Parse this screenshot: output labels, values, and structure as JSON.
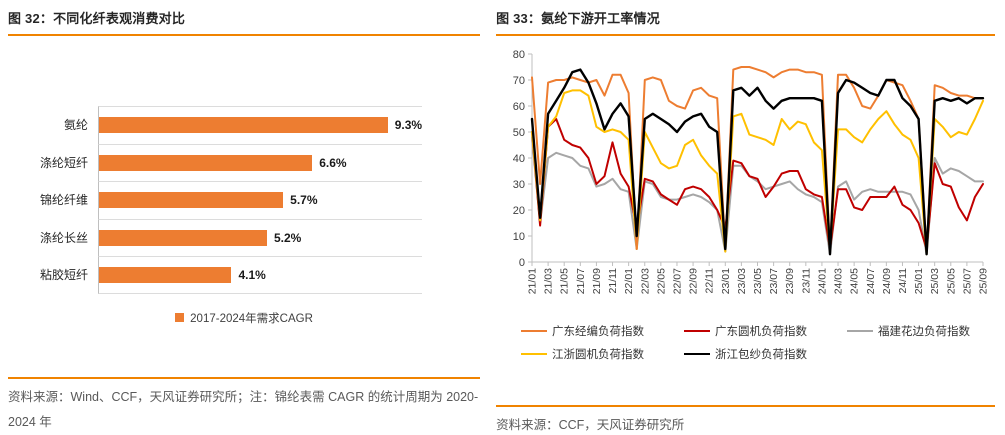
{
  "panels": {
    "left": {
      "title": "图 32：不同化纤表观消费对比",
      "legend_label": "2017-2024年需求CAGR",
      "source": "资料来源：Wind、CCF，天风证券研究所；注：锦纶表需 CAGR 的统计周期为 2020-2024 年"
    },
    "right": {
      "title": "图 33：氨纶下游开工率情况",
      "source": "资料来源：CCF，天风证券研究所"
    }
  },
  "colors": {
    "rule_orange": "#F08300",
    "bar_orange": "#ED7D31",
    "grid_gray": "#DCDCDC",
    "axis_gray": "#BFBFBF",
    "tick_text": "#404040"
  },
  "chart_data": [
    {
      "type": "bar",
      "orientation": "horizontal",
      "title": "不同化纤表观消费对比",
      "series_name": "2017-2024年需求CAGR",
      "categories": [
        "氨纶",
        "涤纶短纤",
        "锦纶纤维",
        "涤纶长丝",
        "粘胶短纤"
      ],
      "values": [
        9.3,
        6.6,
        5.7,
        5.2,
        4.1
      ],
      "value_labels": [
        "9.3%",
        "6.6%",
        "5.7%",
        "5.2%",
        "4.1%"
      ],
      "xlim": [
        0,
        10
      ],
      "bar_color": "#ED7D31",
      "grid": "category-separators"
    },
    {
      "type": "line",
      "title": "氨纶下游开工率情况",
      "ylim": [
        0,
        80
      ],
      "ytick_interval": 10,
      "xtick_every": 2,
      "legend_position": "bottom",
      "x": [
        "21/01",
        "21/02",
        "21/03",
        "21/04",
        "21/05",
        "21/06",
        "21/07",
        "21/08",
        "21/09",
        "21/10",
        "21/11",
        "21/12",
        "22/01",
        "22/02",
        "22/03",
        "22/04",
        "22/05",
        "22/06",
        "22/07",
        "22/08",
        "22/09",
        "22/10",
        "22/11",
        "22/12",
        "23/01",
        "23/02",
        "23/03",
        "23/04",
        "23/05",
        "23/06",
        "23/07",
        "23/08",
        "23/09",
        "23/10",
        "23/11",
        "23/12",
        "24/01",
        "24/02",
        "24/03",
        "24/04",
        "24/05",
        "24/06",
        "24/07",
        "24/08",
        "24/09",
        "24/10",
        "24/11",
        "24/12",
        "25/01",
        "25/02",
        "25/03",
        "25/04",
        "25/05",
        "25/06",
        "25/07",
        "25/08",
        "25/09"
      ],
      "series": [
        {
          "name": "广东经编负荷指数",
          "color": "#ED7D31",
          "width": 2,
          "values": [
            71,
            30,
            69,
            70,
            70,
            71,
            70,
            69,
            70,
            64,
            72,
            72,
            65,
            5,
            70,
            71,
            70,
            62,
            60,
            59,
            66,
            67,
            64,
            63,
            5,
            74,
            75,
            75,
            74,
            73,
            71,
            73,
            74,
            74,
            73,
            73,
            72,
            4,
            72,
            72,
            67,
            60,
            59,
            64,
            70,
            69,
            68,
            62,
            55,
            4,
            68,
            67,
            65,
            64,
            64,
            63,
            63
          ]
        },
        {
          "name": "广东圆机负荷指数",
          "color": "#C00000",
          "width": 2,
          "values": [
            50,
            14,
            52,
            55,
            47,
            45,
            44,
            40,
            30,
            33,
            46,
            34,
            29,
            13,
            32,
            31,
            26,
            24,
            22,
            28,
            29,
            28,
            25,
            20,
            13,
            39,
            38,
            33,
            32,
            25,
            29,
            34,
            35,
            35,
            28,
            26,
            25,
            5,
            28,
            28,
            21,
            20,
            25,
            25,
            25,
            29,
            22,
            20,
            15,
            5,
            38,
            30,
            29,
            21,
            16,
            25,
            30
          ]
        },
        {
          "name": "福建花边负荷指数",
          "color": "#A6A6A6",
          "width": 2,
          "values": [
            48,
            15,
            40,
            42,
            41,
            40,
            37,
            36,
            29,
            30,
            32,
            28,
            27,
            5,
            31,
            30,
            25,
            24,
            24,
            25,
            26,
            25,
            23,
            20,
            4,
            37,
            37,
            33,
            31,
            28,
            29,
            30,
            31,
            28,
            26,
            25,
            23,
            3,
            29,
            31,
            24,
            27,
            28,
            27,
            27,
            27,
            27,
            26,
            20,
            3,
            40,
            34,
            36,
            35,
            33,
            31,
            31
          ]
        },
        {
          "name": "江浙圆机负荷指数",
          "color": "#FFC000",
          "width": 2,
          "values": [
            50,
            16,
            52,
            56,
            65,
            66,
            66,
            64,
            52,
            50,
            51,
            50,
            47,
            5,
            50,
            44,
            38,
            36,
            37,
            45,
            47,
            41,
            37,
            34,
            4,
            56,
            57,
            49,
            48,
            47,
            45,
            55,
            51,
            54,
            53,
            46,
            43,
            4,
            51,
            51,
            48,
            46,
            51,
            55,
            58,
            53,
            49,
            47,
            40,
            3,
            55,
            52,
            48,
            50,
            49,
            55,
            62
          ]
        },
        {
          "name": "浙江包纱负荷指数",
          "color": "#000000",
          "width": 2.4,
          "values": [
            55,
            17,
            57,
            62,
            67,
            73,
            74,
            69,
            61,
            51,
            57,
            61,
            56,
            10,
            55,
            57,
            55,
            53,
            50,
            54,
            56,
            57,
            52,
            50,
            5,
            66,
            67,
            64,
            67,
            62,
            59,
            62,
            63,
            63,
            63,
            63,
            62,
            3,
            65,
            70,
            69,
            67,
            65,
            64,
            70,
            70,
            63,
            60,
            55,
            3,
            62,
            63,
            62,
            63,
            61,
            63,
            63
          ]
        }
      ],
      "draw_order": [
        2,
        1,
        3,
        0,
        4
      ]
    }
  ]
}
